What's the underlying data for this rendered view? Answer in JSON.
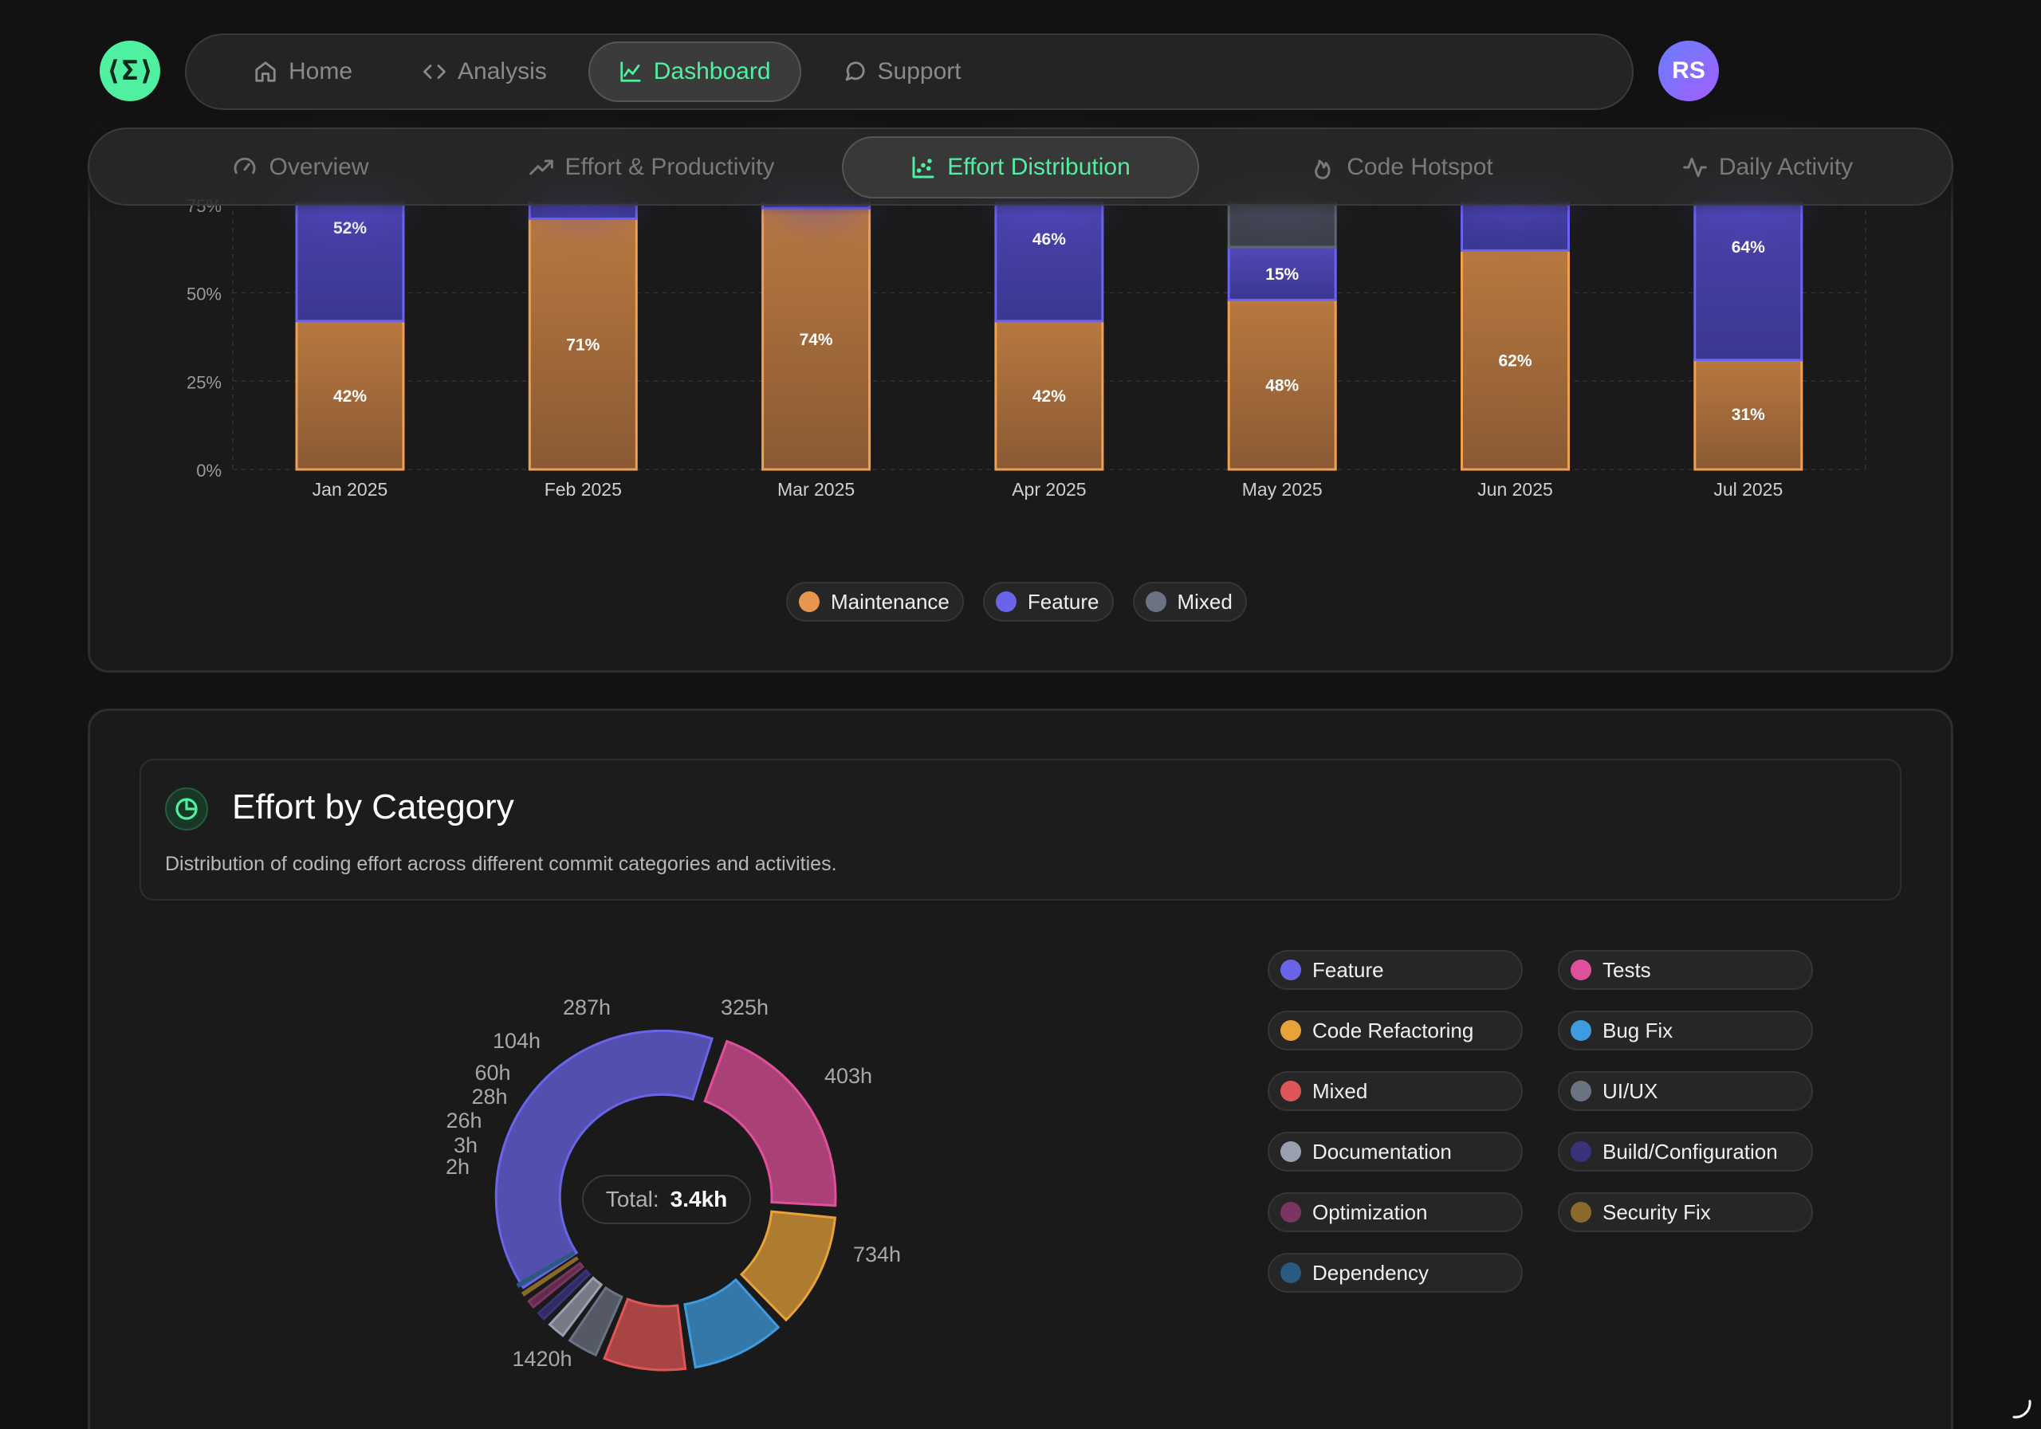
{
  "nav": {
    "logo_text": "⟨Σ⟩",
    "items": [
      {
        "label": "Home",
        "icon": "home-icon",
        "active": false
      },
      {
        "label": "Analysis",
        "icon": "code-icon",
        "active": false
      },
      {
        "label": "Dashboard",
        "icon": "chart-icon",
        "active": true
      },
      {
        "label": "Support",
        "icon": "chat-icon",
        "active": false
      }
    ],
    "avatar_initials": "RS"
  },
  "subnav": {
    "items": [
      {
        "label": "Overview",
        "icon": "gauge-icon",
        "active": false
      },
      {
        "label": "Effort & Productivity",
        "icon": "trend-icon",
        "active": false
      },
      {
        "label": "Effort Distribution",
        "icon": "scatter-icon",
        "active": true
      },
      {
        "label": "Code Hotspot",
        "icon": "flame-icon",
        "active": false
      },
      {
        "label": "Daily Activity",
        "icon": "pulse-icon",
        "active": false
      }
    ]
  },
  "colors": {
    "accent": "#4ff0a0",
    "maintenance": "#e8964f",
    "feature": "#6a64e8",
    "mixed": "#6b7282",
    "background": "#121212",
    "card": "#1a1a1a"
  },
  "legend_monthly": [
    {
      "label": "Maintenance",
      "color": "#e8964f"
    },
    {
      "label": "Feature",
      "color": "#6a64e8"
    },
    {
      "label": "Mixed",
      "color": "#6b7282"
    }
  ],
  "category_section": {
    "title": "Effort by Category",
    "description": "Distribution of coding effort across different commit categories and activities.",
    "total_label": "Total:",
    "total_value": "3.4kh"
  },
  "category_legend": [
    {
      "label": "Feature",
      "color": "#6a64e8"
    },
    {
      "label": "Tests",
      "color": "#e0509a"
    },
    {
      "label": "Code Refactoring",
      "color": "#e8a23a"
    },
    {
      "label": "Bug Fix",
      "color": "#3e9be0"
    },
    {
      "label": "Mixed",
      "color": "#e05555"
    },
    {
      "label": "UI/UX",
      "color": "#6b7282"
    },
    {
      "label": "Documentation",
      "color": "#9aa0b0"
    },
    {
      "label": "Build/Configuration",
      "color": "#38337a"
    },
    {
      "label": "Optimization",
      "color": "#7a3560"
    },
    {
      "label": "Security Fix",
      "color": "#8a6a2a"
    },
    {
      "label": "Dependency",
      "color": "#2a5a80"
    }
  ],
  "chart_data": [
    {
      "type": "bar",
      "stacked": true,
      "categories": [
        "Jan 2025",
        "Feb 2025",
        "Mar 2025",
        "Apr 2025",
        "May 2025",
        "Jun 2025",
        "Jul 2025"
      ],
      "series": [
        {
          "name": "Maintenance",
          "values": [
            42,
            71,
            74,
            42,
            48,
            62,
            31
          ],
          "labels": [
            "42%",
            "71%",
            "74%",
            "42%",
            "48%",
            "62%",
            "31%"
          ]
        },
        {
          "name": "Feature",
          "values": [
            52,
            29,
            26,
            46,
            15,
            38,
            64
          ],
          "labels": [
            "52%",
            "",
            "",
            "46%",
            "15%",
            "",
            "64%"
          ]
        },
        {
          "name": "Mixed",
          "values": [
            0,
            0,
            0,
            0,
            37,
            0,
            0
          ],
          "labels": [
            "",
            "",
            "",
            "",
            "",
            "",
            ""
          ]
        }
      ],
      "yticks": [
        "0%",
        "25%",
        "50%",
        "75%"
      ],
      "ylim": [
        0,
        100
      ],
      "grid": true,
      "legend": "bottom"
    },
    {
      "type": "pie",
      "donut": true,
      "slices": [
        {
          "name": "Feature",
          "value": 1420,
          "label": "1420h"
        },
        {
          "name": "Tests",
          "value": 734,
          "label": "734h"
        },
        {
          "name": "Code Refactoring",
          "value": 403,
          "label": "403h"
        },
        {
          "name": "Bug Fix",
          "value": 325,
          "label": "325h"
        },
        {
          "name": "Mixed",
          "value": 287,
          "label": "287h"
        },
        {
          "name": "UI/UX",
          "value": 104,
          "label": "104h"
        },
        {
          "name": "Documentation",
          "value": 60,
          "label": "60h"
        },
        {
          "name": "Build/Configuration",
          "value": 28,
          "label": "28h"
        },
        {
          "name": "Optimization",
          "value": 26,
          "label": "26h"
        },
        {
          "name": "Security Fix",
          "value": 3,
          "label": "3h"
        },
        {
          "name": "Dependency",
          "value": 2,
          "label": "2h"
        }
      ],
      "total": "3.4kh"
    }
  ]
}
